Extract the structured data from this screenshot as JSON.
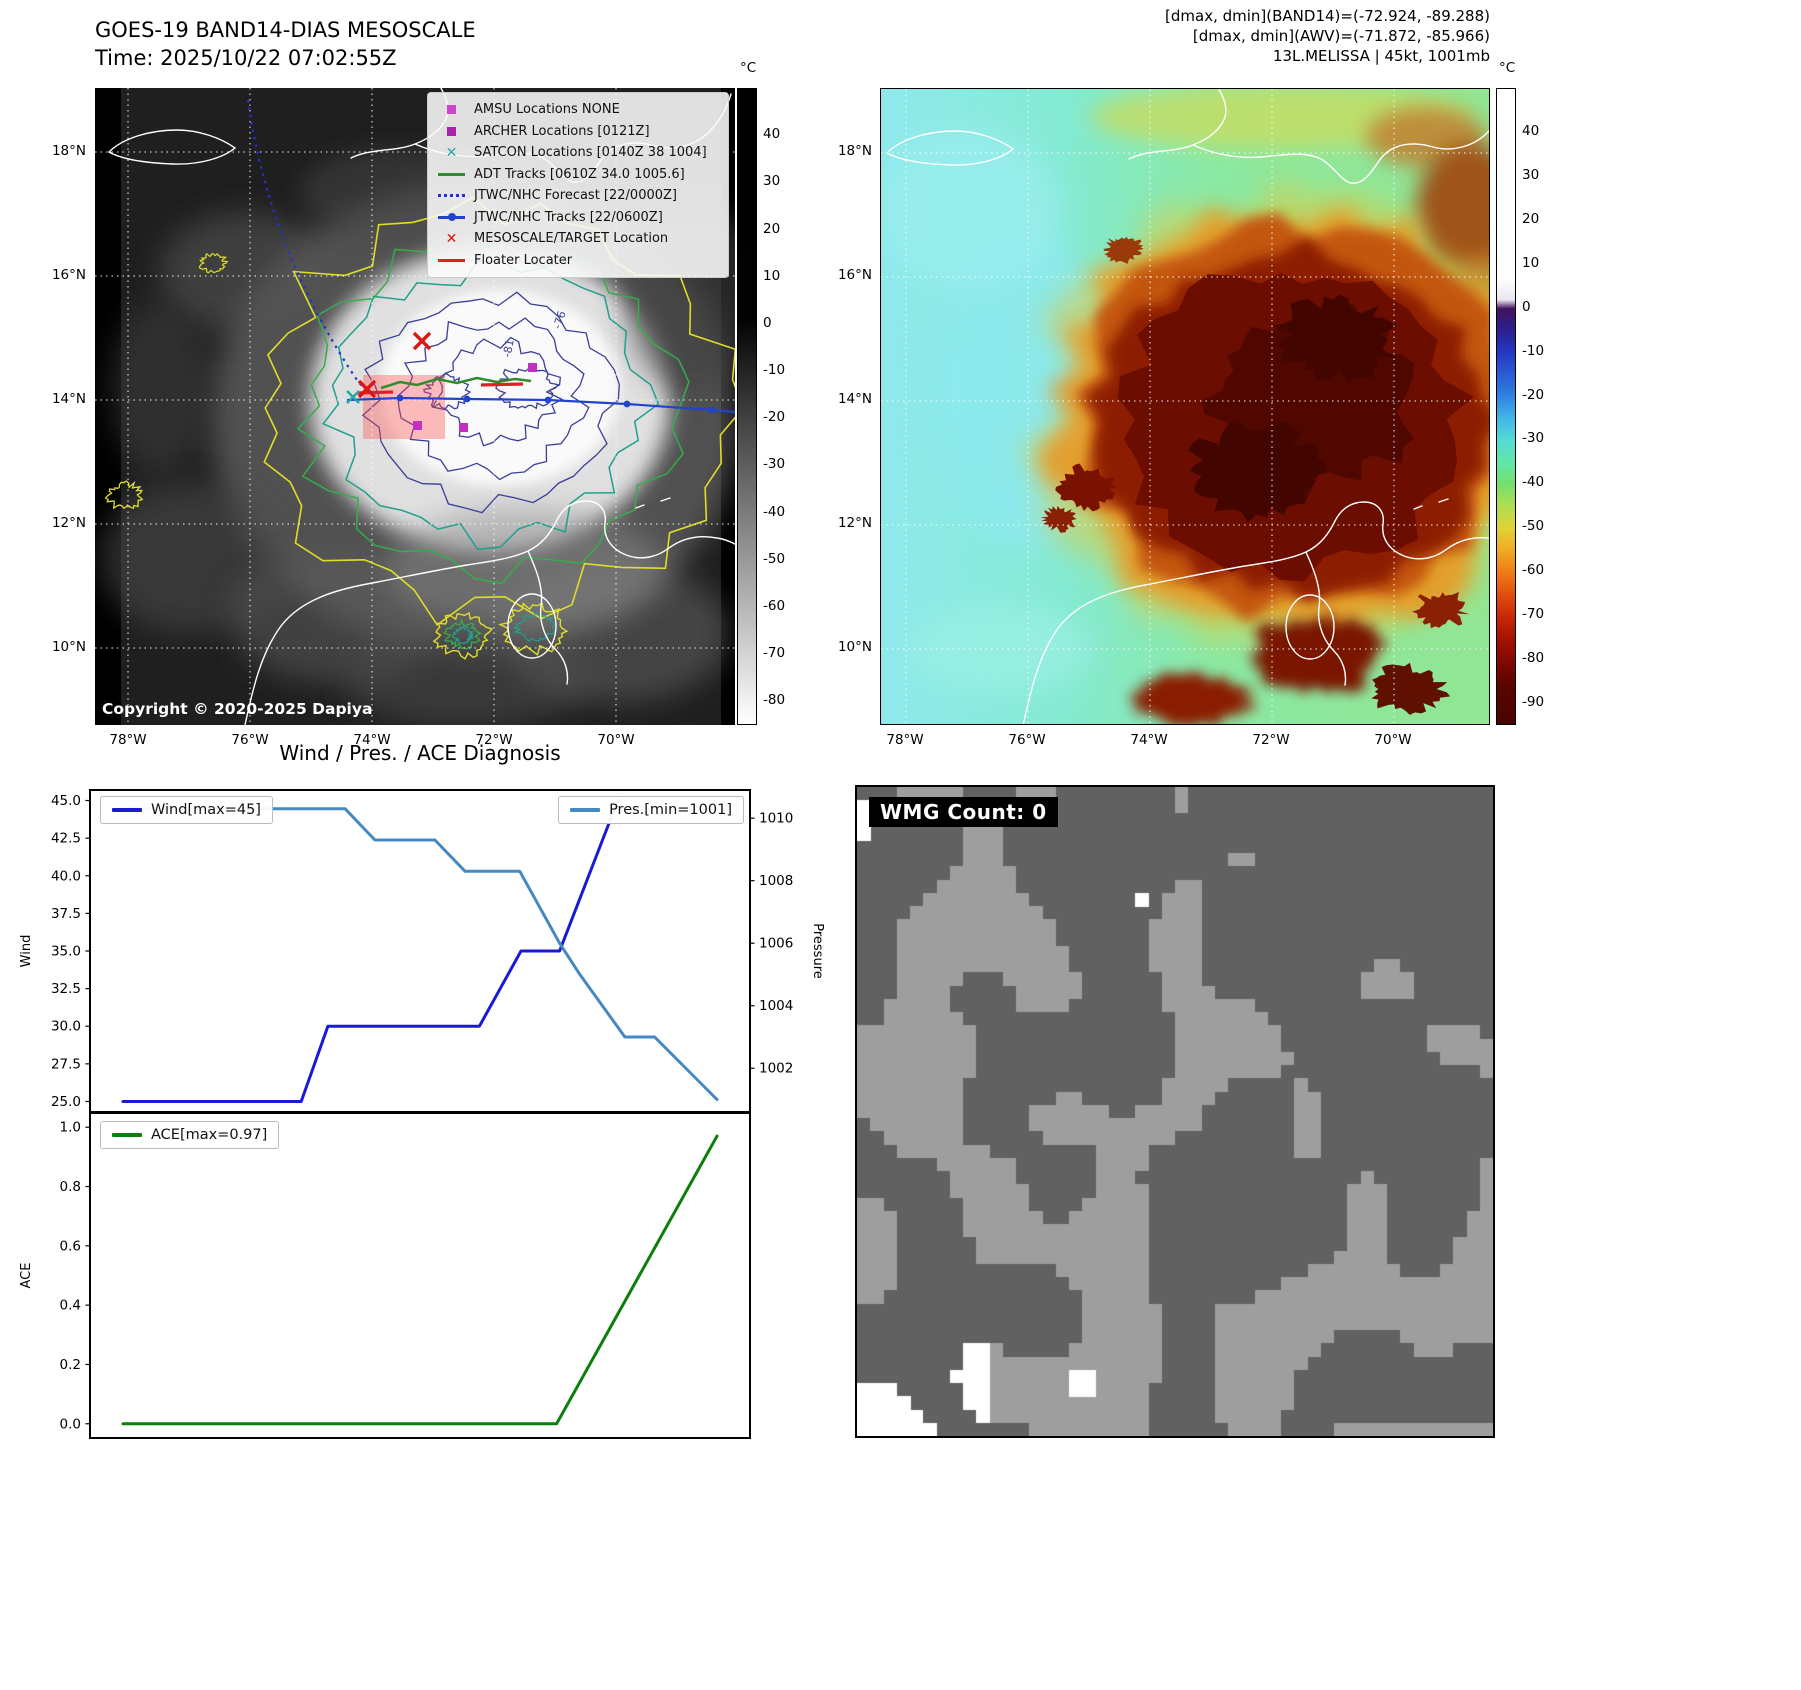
{
  "top_left": {
    "title": "GOES-19 BAND14-DIAS MESOSCALE",
    "subtitle": "Time: 2025/10/22 07:02:55Z",
    "copyright": "Copyright © 2020-2025 Dapiya",
    "colorbar_unit": "°C",
    "colorbar_ticks": [
      "40",
      "30",
      "20",
      "10",
      "0",
      "-10",
      "-20",
      "-30",
      "-40",
      "-50",
      "-60",
      "-70",
      "-80"
    ],
    "lat_ticks": [
      "18°N",
      "16°N",
      "14°N",
      "12°N",
      "10°N"
    ],
    "lon_ticks": [
      "78°W",
      "76°W",
      "74°W",
      "72°W",
      "70°W"
    ],
    "contour_labels": [
      "-76",
      "-81"
    ],
    "legend": [
      {
        "label": "AMSU Locations NONE",
        "marker": "square",
        "color": "#cc44cc"
      },
      {
        "label": "ARCHER Locations [0121Z]",
        "marker": "square",
        "color": "#aa22aa"
      },
      {
        "label": "SATCON Locations [0140Z 38 1004]",
        "marker": "x",
        "color": "#23a8a8"
      },
      {
        "label": "ADT Tracks [0610Z 34.0 1005.6]",
        "marker": "line",
        "color": "#2e8b2e"
      },
      {
        "label": "JTWC/NHC Forecast [22/0000Z]",
        "marker": "dotted-line",
        "color": "#2233cc"
      },
      {
        "label": "JTWC/NHC Tracks [22/0600Z]",
        "marker": "line-dot",
        "color": "#2244cc"
      },
      {
        "label": "MESOSCALE/TARGET Location",
        "marker": "x",
        "color": "#dd1515"
      },
      {
        "label": "Floater Locater",
        "marker": "line",
        "color": "#dd2222"
      }
    ]
  },
  "top_right": {
    "title_lines": [
      "[dmax, dmin](BAND14)=(-72.924, -89.288)",
      "[dmax, dmin](AWV)=(-71.872, -85.966)",
      "13L.MELISSA | 45kt, 1001mb"
    ],
    "colorbar_unit": "°C",
    "colorbar_ticks": [
      "40",
      "30",
      "20",
      "10",
      "0",
      "-10",
      "-20",
      "-30",
      "-40",
      "-50",
      "-60",
      "-70",
      "-80",
      "-90"
    ],
    "lat_ticks": [
      "18°N",
      "16°N",
      "14°N",
      "12°N",
      "10°N"
    ],
    "lon_ticks": [
      "78°W",
      "76°W",
      "74°W",
      "72°W",
      "70°W"
    ]
  },
  "bottom_left": {
    "title": "Wind / Pres. / ACE Diagnosis"
  },
  "bottom_right": {
    "wmg_label": "WMG Count: 0"
  },
  "chart_data": [
    {
      "type": "line",
      "title": "Wind / Pres. / ACE Diagnosis",
      "left_axis": {
        "label": "Wind",
        "ticks": [
          "25.0",
          "27.5",
          "30.0",
          "32.5",
          "35.0",
          "37.5",
          "40.0",
          "42.5",
          "45.0"
        ],
        "ylim": [
          24.3,
          45.7
        ]
      },
      "right_axis": {
        "label": "Pressure",
        "ticks": [
          "1002",
          "1004",
          "1006",
          "1008",
          "1010"
        ],
        "ylim": [
          1000.6,
          1010.9
        ]
      },
      "x_range": [
        0,
        1
      ],
      "grid": false,
      "series": [
        {
          "name": "Wind[max=45]",
          "axis": "left",
          "color": "#1a1ad6",
          "x": [
            0,
            0.3,
            0.345,
            0.6,
            0.67,
            0.735,
            0.833
          ],
          "y": [
            25,
            25,
            30,
            30,
            35,
            35,
            45
          ]
        },
        {
          "name": "Pres.[min=1001]",
          "axis": "right",
          "color": "#4688c0",
          "x": [
            0,
            0.374,
            0.424,
            0.525,
            0.576,
            0.668,
            0.735,
            0.769,
            0.845,
            0.895,
            1.0
          ],
          "y": [
            1010.3,
            1010.3,
            1009.3,
            1009.3,
            1008.3,
            1008.3,
            1006,
            1005,
            1003,
            1003,
            1001
          ]
        }
      ]
    },
    {
      "type": "line",
      "left_axis": {
        "label": "ACE",
        "ticks": [
          "0.0",
          "0.2",
          "0.4",
          "0.6",
          "0.8",
          "1.0"
        ],
        "ylim": [
          -0.048,
          1.048
        ]
      },
      "x_range": [
        0,
        1
      ],
      "grid": false,
      "series": [
        {
          "name": "ACE[max=0.97]",
          "axis": "left",
          "color": "#0a800a",
          "x": [
            0,
            0.73,
            1.0
          ],
          "y": [
            0,
            0,
            0.97
          ]
        }
      ]
    }
  ]
}
